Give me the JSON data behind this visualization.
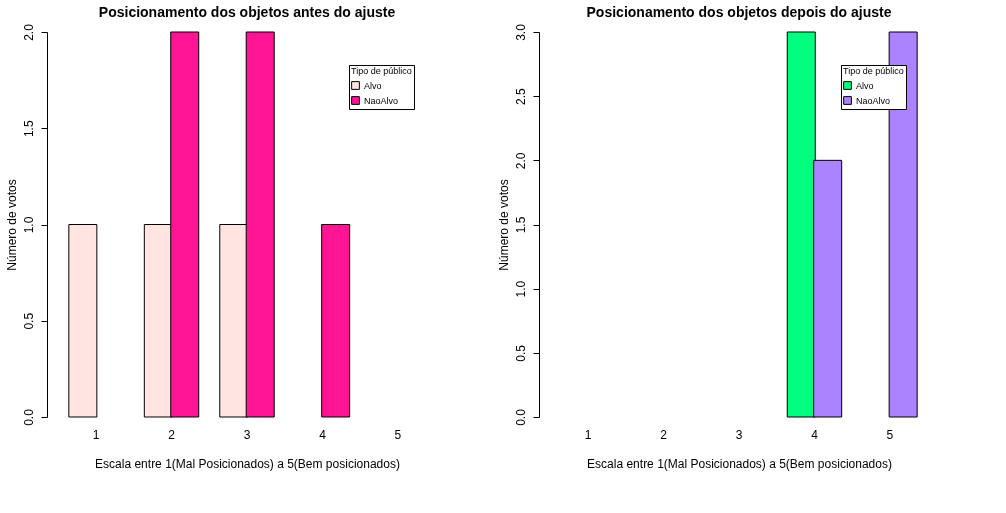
{
  "chart_data": [
    {
      "type": "bar",
      "title": "Posicionamento dos objetos antes do ajuste",
      "xlabel": "Escala entre 1(Mal Posicionados) a 5(Bem posicionados)",
      "ylabel": "Número de votos",
      "legend_title": "Tipo de público",
      "legend": "top right",
      "grid": false,
      "categories": [
        "1",
        "2",
        "3",
        "4",
        "5"
      ],
      "series": [
        {
          "name": "Alvo",
          "color": "#ffe4e1",
          "values": [
            1,
            1,
            1,
            0,
            0
          ]
        },
        {
          "name": "NaoAlvo",
          "color": "#ff1493",
          "values": [
            0,
            2,
            2,
            1,
            0
          ]
        }
      ],
      "ylim": [
        0,
        2
      ],
      "yticks": [
        {
          "value": 0,
          "label": "0.0"
        },
        {
          "value": 0.5,
          "label": "0.5"
        },
        {
          "value": 1,
          "label": "1.0"
        },
        {
          "value": 1.5,
          "label": "1.5"
        },
        {
          "value": 2,
          "label": "2.0"
        }
      ]
    },
    {
      "type": "bar",
      "title": "Posicionamento dos objetos depois do ajuste",
      "xlabel": "Escala entre 1(Mal Posicionados) a 5(Bem posicionados)",
      "ylabel": "Número de votos",
      "legend_title": "Tipo de público",
      "legend": "top right",
      "grid": false,
      "categories": [
        "1",
        "2",
        "3",
        "4",
        "5"
      ],
      "series": [
        {
          "name": "Alvo",
          "color": "#00ff7f",
          "values": [
            0,
            0,
            0,
            3,
            0
          ]
        },
        {
          "name": "NaoAlvo",
          "color": "#ab82ff",
          "values": [
            0,
            0,
            0,
            2,
            3
          ]
        }
      ],
      "ylim": [
        0,
        3
      ],
      "yticks": [
        {
          "value": 0,
          "label": "0.0"
        },
        {
          "value": 0.5,
          "label": "0.5"
        },
        {
          "value": 1,
          "label": "1.0"
        },
        {
          "value": 1.5,
          "label": "1.5"
        },
        {
          "value": 2,
          "label": "2.0"
        },
        {
          "value": 2.5,
          "label": "2.5"
        },
        {
          "value": 3,
          "label": "3.0"
        }
      ]
    }
  ]
}
